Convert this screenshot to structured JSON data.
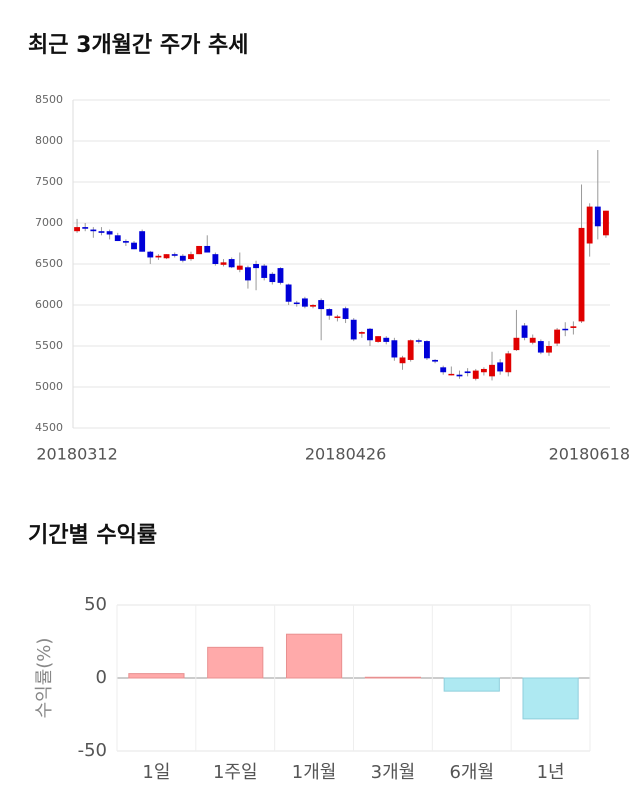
{
  "chart_data": [
    {
      "type": "candlestick",
      "title": "최근 3개월간 주가 추세",
      "categories": [
        "20180312",
        null,
        null,
        null,
        null,
        null,
        null,
        null,
        null,
        null,
        null,
        null,
        null,
        null,
        null,
        null,
        null,
        null,
        null,
        null,
        null,
        null,
        null,
        null,
        null,
        null,
        null,
        null,
        null,
        null,
        null,
        null,
        null,
        "20180426",
        null,
        null,
        null,
        null,
        null,
        null,
        null,
        null,
        null,
        null,
        null,
        null,
        null,
        null,
        null,
        null,
        null,
        null,
        null,
        null,
        null,
        null,
        null,
        null,
        null,
        null,
        null,
        null,
        null,
        null,
        null,
        "20180618"
      ],
      "open": [
        6900,
        6950,
        6920,
        6900,
        6900,
        6850,
        6780,
        6760,
        6900,
        6650,
        6580,
        6570,
        6620,
        6600,
        6560,
        6620,
        6720,
        6620,
        6490,
        6560,
        6430,
        6460,
        6500,
        6480,
        6380,
        6450,
        6250,
        6030,
        6080,
        5980,
        6060,
        5950,
        5860,
        5960,
        5820,
        5650,
        5710,
        5550,
        5600,
        5570,
        5290,
        5330,
        5570,
        5560,
        5330,
        5240,
        5150,
        5150,
        5190,
        5100,
        5180,
        5130,
        5300,
        5180,
        5450,
        5750,
        5540,
        5560,
        5420,
        5530,
        5710,
        5720,
        5800,
        6750,
        7200,
        6850
      ],
      "high": [
        7050,
        7000,
        6950,
        6950,
        6920,
        6880,
        6800,
        6780,
        6920,
        6660,
        6620,
        6620,
        6640,
        6620,
        6650,
        6720,
        6850,
        6640,
        6560,
        6580,
        6640,
        6480,
        6540,
        6500,
        6400,
        6460,
        6260,
        6050,
        6100,
        6010,
        6080,
        5960,
        5880,
        5980,
        5840,
        5680,
        5720,
        5620,
        5620,
        5600,
        5380,
        5580,
        5590,
        5570,
        5340,
        5260,
        5250,
        5200,
        5230,
        5220,
        5240,
        5430,
        5340,
        5440,
        5940,
        5780,
        5640,
        5580,
        5560,
        5720,
        5790,
        5800,
        7470,
        7240,
        7890,
        7150
      ],
      "low": [
        6880,
        6900,
        6820,
        6850,
        6800,
        6780,
        6720,
        6680,
        6650,
        6500,
        6550,
        6560,
        6580,
        6520,
        6540,
        6620,
        6640,
        6480,
        6470,
        6450,
        6400,
        6200,
        6180,
        6300,
        6250,
        6250,
        6000,
        5980,
        5960,
        5960,
        5570,
        5820,
        5800,
        5780,
        5560,
        5600,
        5500,
        5540,
        5520,
        5320,
        5210,
        5310,
        5530,
        5330,
        5290,
        5150,
        5140,
        5100,
        5130,
        5080,
        5140,
        5080,
        5150,
        5130,
        5440,
        5570,
        5520,
        5400,
        5380,
        5500,
        5620,
        5640,
        5780,
        6590,
        6800,
        6820
      ],
      "close": [
        6950,
        6930,
        6900,
        6880,
        6860,
        6780,
        6760,
        6680,
        6650,
        6580,
        6600,
        6620,
        6600,
        6540,
        6620,
        6720,
        6640,
        6500,
        6520,
        6460,
        6480,
        6300,
        6450,
        6330,
        6280,
        6270,
        6040,
        6020,
        5980,
        6000,
        5950,
        5870,
        5860,
        5830,
        5580,
        5670,
        5570,
        5620,
        5550,
        5360,
        5360,
        5570,
        5560,
        5350,
        5310,
        5180,
        5160,
        5130,
        5170,
        5200,
        5220,
        5270,
        5190,
        5410,
        5600,
        5600,
        5600,
        5420,
        5500,
        5700,
        5700,
        5740,
        6940,
        7200,
        6960,
        7150
      ],
      "up_color": "#e00000",
      "down_color": "#0000d8",
      "wick_color": "#999999",
      "ylim": [
        4500,
        8500
      ],
      "yticks": [
        4500,
        5000,
        5500,
        6000,
        6500,
        7000,
        7500,
        8000,
        8500
      ],
      "grid": true
    },
    {
      "type": "bar",
      "title": "기간별 수익률",
      "y_label": "수익률(%)",
      "categories": [
        "1일",
        "1주일",
        "1개월",
        "3개월",
        "6개월",
        "1년"
      ],
      "values": [
        3,
        21,
        30,
        0.5,
        -9,
        -28
      ],
      "positive_color": "#ffaaaa",
      "negative_color": "#aee9f2",
      "ylim": [
        -50,
        50
      ],
      "yticks": [
        -50,
        0,
        50
      ],
      "grid": true
    }
  ]
}
